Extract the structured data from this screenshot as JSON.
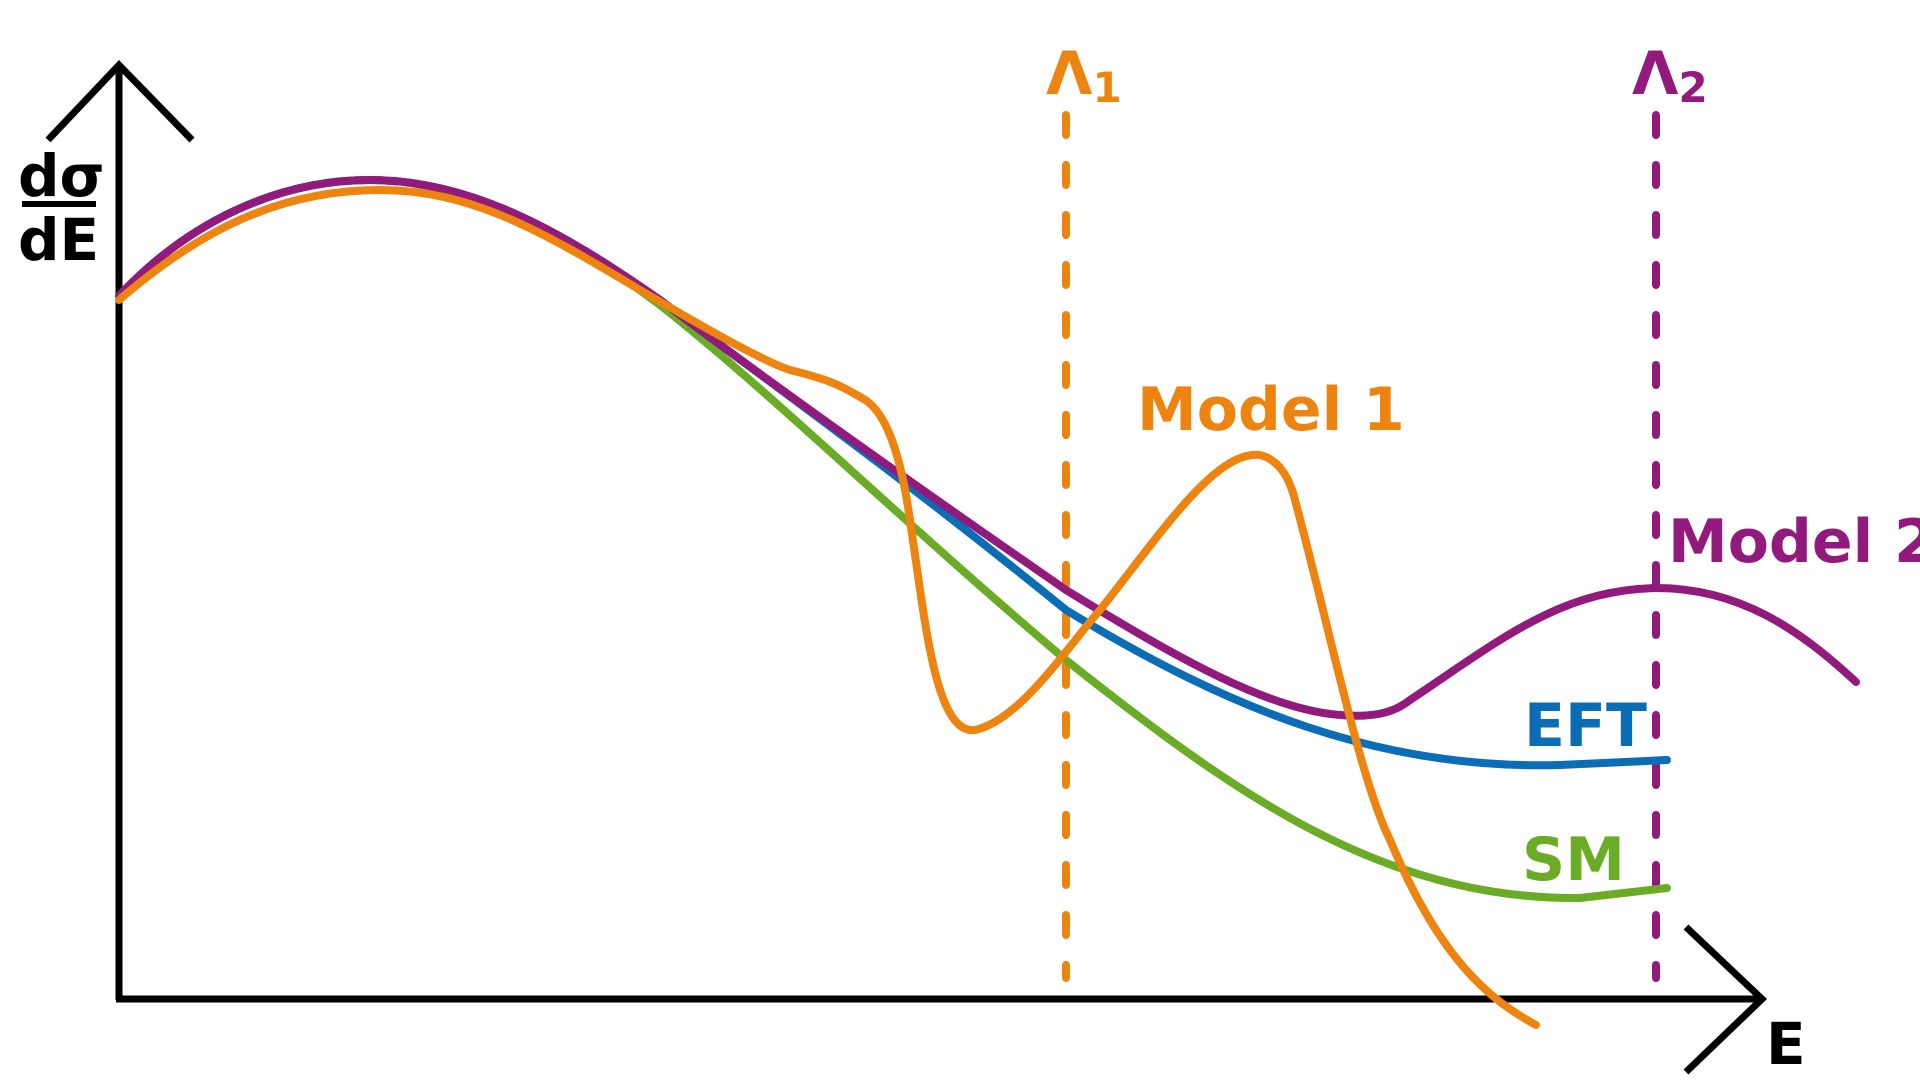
{
  "axes": {
    "y_label_top": "dσ",
    "y_label_bottom": "dE",
    "x_label": "E"
  },
  "thresholds": [
    {
      "symbol": "Λ",
      "subscript": "1",
      "color": "#ee8410"
    },
    {
      "symbol": "Λ",
      "subscript": "2",
      "color": "#921a7c"
    }
  ],
  "curves": [
    {
      "name": "SM",
      "label": "SM",
      "color": "#6aac25"
    },
    {
      "name": "EFT",
      "label": "EFT",
      "color": "#0a6db5"
    },
    {
      "name": "Model 1",
      "label": "Model 1",
      "color": "#ee8410"
    },
    {
      "name": "Model 2",
      "label": "Model 2",
      "color": "#921a7c"
    }
  ],
  "axis_color": "#000000"
}
